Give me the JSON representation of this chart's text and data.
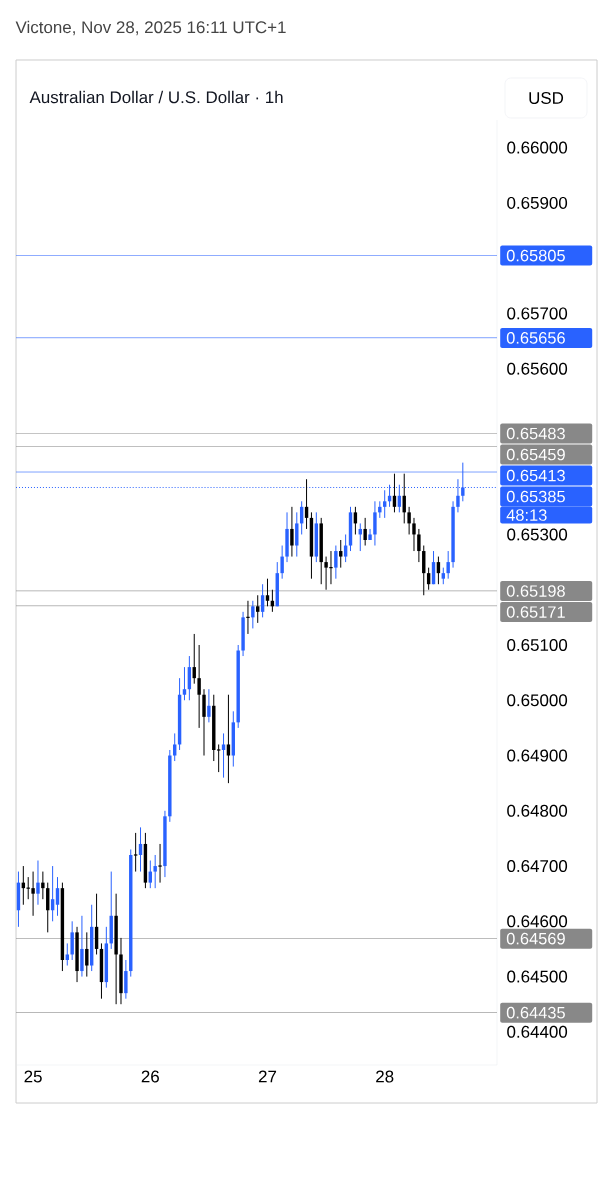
{
  "chart_data": {
    "type": "candlestick",
    "title": "Australian Dollar / U.S. Dollar · 1h",
    "subtitle": "Victone, Nov 28, 2025 16:11 UTC+1",
    "ylabel": "USD",
    "x": [
      "2025-11-24T21:00",
      "2025-11-24T22:00",
      "2025-11-24T23:00",
      "2025-11-25T00:00",
      "2025-11-25T01:00",
      "2025-11-25T02:00",
      "2025-11-25T03:00",
      "2025-11-25T04:00",
      "2025-11-25T05:00",
      "2025-11-25T06:00",
      "2025-11-25T07:00",
      "2025-11-25T08:00",
      "2025-11-25T09:00",
      "2025-11-25T10:00",
      "2025-11-25T11:00",
      "2025-11-25T12:00",
      "2025-11-25T13:00",
      "2025-11-25T14:00",
      "2025-11-25T15:00",
      "2025-11-25T16:00",
      "2025-11-25T17:00",
      "2025-11-25T18:00",
      "2025-11-25T19:00",
      "2025-11-25T20:00",
      "2025-11-25T21:00",
      "2025-11-25T22:00",
      "2025-11-25T23:00",
      "2025-11-26T00:00",
      "2025-11-26T01:00",
      "2025-11-26T02:00",
      "2025-11-26T03:00",
      "2025-11-26T04:00",
      "2025-11-26T05:00",
      "2025-11-26T06:00",
      "2025-11-26T07:00",
      "2025-11-26T08:00",
      "2025-11-26T09:00",
      "2025-11-26T10:00",
      "2025-11-26T11:00",
      "2025-11-26T12:00",
      "2025-11-26T13:00",
      "2025-11-26T14:00",
      "2025-11-26T15:00",
      "2025-11-26T16:00",
      "2025-11-26T17:00",
      "2025-11-26T18:00",
      "2025-11-26T19:00",
      "2025-11-26T20:00",
      "2025-11-26T21:00",
      "2025-11-26T22:00",
      "2025-11-26T23:00",
      "2025-11-27T00:00",
      "2025-11-27T01:00",
      "2025-11-27T02:00",
      "2025-11-27T03:00",
      "2025-11-27T04:00",
      "2025-11-27T05:00",
      "2025-11-27T06:00",
      "2025-11-27T07:00",
      "2025-11-27T08:00",
      "2025-11-27T09:00",
      "2025-11-27T10:00",
      "2025-11-27T11:00",
      "2025-11-27T12:00",
      "2025-11-27T13:00",
      "2025-11-27T14:00",
      "2025-11-27T15:00",
      "2025-11-27T16:00",
      "2025-11-27T17:00",
      "2025-11-27T18:00",
      "2025-11-27T19:00",
      "2025-11-27T20:00",
      "2025-11-27T21:00",
      "2025-11-27T22:00",
      "2025-11-27T23:00",
      "2025-11-28T00:00",
      "2025-11-28T01:00",
      "2025-11-28T02:00",
      "2025-11-28T03:00",
      "2025-11-28T04:00",
      "2025-11-28T05:00",
      "2025-11-28T06:00",
      "2025-11-28T07:00",
      "2025-11-28T08:00",
      "2025-11-28T09:00",
      "2025-11-28T10:00",
      "2025-11-28T11:00",
      "2025-11-28T12:00",
      "2025-11-28T13:00",
      "2025-11-28T14:00",
      "2025-11-28T15:00",
      "2025-11-28T16:00"
    ],
    "ohlc": [
      [
        0.6462,
        0.6469,
        0.6459,
        0.6467
      ],
      [
        0.6467,
        0.647,
        0.6463,
        0.6466
      ],
      [
        0.6466,
        0.6468,
        0.6464,
        0.6466
      ],
      [
        0.6466,
        0.6469,
        0.6461,
        0.6465
      ],
      [
        0.6465,
        0.6471,
        0.6463,
        0.6467
      ],
      [
        0.6467,
        0.6469,
        0.6464,
        0.6466
      ],
      [
        0.6466,
        0.6467,
        0.6458,
        0.6462
      ],
      [
        0.6462,
        0.647,
        0.646,
        0.6464
      ],
      [
        0.6463,
        0.6468,
        0.6461,
        0.6466
      ],
      [
        0.6466,
        0.6467,
        0.6451,
        0.6453
      ],
      [
        0.6453,
        0.6456,
        0.6452,
        0.6454
      ],
      [
        0.6454,
        0.646,
        0.6453,
        0.6458
      ],
      [
        0.6458,
        0.6459,
        0.6449,
        0.6451
      ],
      [
        0.6451,
        0.6461,
        0.645,
        0.6455
      ],
      [
        0.6455,
        0.6458,
        0.645,
        0.6452
      ],
      [
        0.6452,
        0.6463,
        0.6451,
        0.6459
      ],
      [
        0.6459,
        0.6465,
        0.6454,
        0.6455
      ],
      [
        0.6455,
        0.6456,
        0.6446,
        0.6449
      ],
      [
        0.6449,
        0.6459,
        0.6448,
        0.6456
      ],
      [
        0.6456,
        0.6469,
        0.6455,
        0.6461
      ],
      [
        0.6461,
        0.6465,
        0.6445,
        0.6454
      ],
      [
        0.6454,
        0.6457,
        0.6445,
        0.6447
      ],
      [
        0.6447,
        0.6453,
        0.6446,
        0.6451
      ],
      [
        0.6451,
        0.6473,
        0.645,
        0.6472
      ],
      [
        0.6472,
        0.6476,
        0.6469,
        0.6472
      ],
      [
        0.6472,
        0.6477,
        0.6469,
        0.6474
      ],
      [
        0.6474,
        0.6476,
        0.6466,
        0.6467
      ],
      [
        0.6467,
        0.6471,
        0.6466,
        0.6469
      ],
      [
        0.6469,
        0.6472,
        0.6466,
        0.647
      ],
      [
        0.647,
        0.6474,
        0.6467,
        0.647
      ],
      [
        0.647,
        0.648,
        0.6468,
        0.6479
      ],
      [
        0.6479,
        0.6491,
        0.6478,
        0.649
      ],
      [
        0.649,
        0.6494,
        0.6489,
        0.6492
      ],
      [
        0.6492,
        0.6504,
        0.6491,
        0.6501
      ],
      [
        0.6501,
        0.6506,
        0.65,
        0.6502
      ],
      [
        0.6502,
        0.6508,
        0.65,
        0.6506
      ],
      [
        0.6506,
        0.6512,
        0.6503,
        0.6504
      ],
      [
        0.6504,
        0.651,
        0.6495,
        0.6501
      ],
      [
        0.6501,
        0.6502,
        0.649,
        0.6497
      ],
      [
        0.6497,
        0.6502,
        0.6496,
        0.6499
      ],
      [
        0.6499,
        0.6501,
        0.6489,
        0.6491
      ],
      [
        0.6491,
        0.6492,
        0.6487,
        0.6491
      ],
      [
        0.6491,
        0.6494,
        0.6486,
        0.6492
      ],
      [
        0.6492,
        0.6501,
        0.6485,
        0.649
      ],
      [
        0.649,
        0.6498,
        0.6488,
        0.6496
      ],
      [
        0.6496,
        0.651,
        0.6495,
        0.6509
      ],
      [
        0.6509,
        0.6516,
        0.6508,
        0.6515
      ],
      [
        0.6515,
        0.6518,
        0.6512,
        0.6515
      ],
      [
        0.6515,
        0.6518,
        0.6513,
        0.6517
      ],
      [
        0.6517,
        0.6519,
        0.6514,
        0.6516
      ],
      [
        0.6516,
        0.6521,
        0.6515,
        0.6519
      ],
      [
        0.6519,
        0.6522,
        0.6517,
        0.6518
      ],
      [
        0.6518,
        0.652,
        0.6516,
        0.6517
      ],
      [
        0.6517,
        0.6525,
        0.6517,
        0.6523
      ],
      [
        0.6523,
        0.6528,
        0.6522,
        0.6526
      ],
      [
        0.6526,
        0.6534,
        0.6525,
        0.6531
      ],
      [
        0.6531,
        0.6535,
        0.6526,
        0.6528
      ],
      [
        0.6528,
        0.6534,
        0.6526,
        0.6532
      ],
      [
        0.6532,
        0.6536,
        0.653,
        0.6535
      ],
      [
        0.6535,
        0.654,
        0.6531,
        0.6533
      ],
      [
        0.6533,
        0.6534,
        0.6522,
        0.6526
      ],
      [
        0.6526,
        0.6534,
        0.6525,
        0.6532
      ],
      [
        0.6532,
        0.6533,
        0.6521,
        0.6525
      ],
      [
        0.6525,
        0.6526,
        0.652,
        0.6524
      ],
      [
        0.6524,
        0.6527,
        0.6521,
        0.6524
      ],
      [
        0.6524,
        0.6528,
        0.6522,
        0.6527
      ],
      [
        0.6527,
        0.6529,
        0.6524,
        0.6526
      ],
      [
        0.6526,
        0.653,
        0.6525,
        0.6528
      ],
      [
        0.6528,
        0.6535,
        0.6527,
        0.6534
      ],
      [
        0.6534,
        0.6535,
        0.653,
        0.6532
      ],
      [
        0.653,
        0.6532,
        0.6527,
        0.6531
      ],
      [
        0.6531,
        0.6533,
        0.6528,
        0.6529
      ],
      [
        0.6529,
        0.6531,
        0.6529,
        0.653
      ],
      [
        0.653,
        0.6536,
        0.6528,
        0.6534
      ],
      [
        0.6534,
        0.6536,
        0.6533,
        0.6535
      ],
      [
        0.6535,
        0.6538,
        0.6533,
        0.6536
      ],
      [
        0.6536,
        0.6539,
        0.6535,
        0.6537
      ],
      [
        0.6537,
        0.6541,
        0.6534,
        0.6535
      ],
      [
        0.6535,
        0.6539,
        0.6534,
        0.6537
      ],
      [
        0.6537,
        0.6541,
        0.6532,
        0.6534
      ],
      [
        0.6534,
        0.6535,
        0.653,
        0.6532
      ],
      [
        0.6532,
        0.6533,
        0.6527,
        0.653
      ],
      [
        0.653,
        0.6531,
        0.6525,
        0.6527
      ],
      [
        0.6527,
        0.6528,
        0.6519,
        0.6523
      ],
      [
        0.6523,
        0.6524,
        0.652,
        0.6521
      ],
      [
        0.6521,
        0.6527,
        0.6521,
        0.6525
      ],
      [
        0.6525,
        0.6526,
        0.6521,
        0.6523
      ],
      [
        0.6522,
        0.6524,
        0.6521,
        0.6523
      ],
      [
        0.6523,
        0.6527,
        0.6522,
        0.6525
      ],
      [
        0.6525,
        0.6536,
        0.6524,
        0.6535
      ],
      [
        0.6535,
        0.654,
        0.6534,
        0.6537
      ],
      [
        0.6537,
        0.6543,
        0.6536,
        0.65385
      ]
    ],
    "colors": [
      "#2962ff",
      "#000000",
      "#000000",
      "#000000",
      "#2962ff",
      "#000000",
      "#000000",
      "#2962ff",
      "#2962ff",
      "#000000",
      "#2962ff",
      "#2962ff",
      "#000000",
      "#2962ff",
      "#000000",
      "#2962ff",
      "#000000",
      "#000000",
      "#2962ff",
      "#2962ff",
      "#000000",
      "#000000",
      "#2962ff",
      "#2962ff",
      "#000000",
      "#2962ff",
      "#000000",
      "#2962ff",
      "#2962ff",
      "#000000",
      "#2962ff",
      "#2962ff",
      "#2962ff",
      "#2962ff",
      "#2962ff",
      "#2962ff",
      "#000000",
      "#000000",
      "#000000",
      "#2962ff",
      "#000000",
      "#000000",
      "#2962ff",
      "#000000",
      "#2962ff",
      "#2962ff",
      "#2962ff",
      "#000000",
      "#2962ff",
      "#000000",
      "#2962ff",
      "#000000",
      "#000000",
      "#2962ff",
      "#2962ff",
      "#2962ff",
      "#000000",
      "#2962ff",
      "#2962ff",
      "#000000",
      "#000000",
      "#2962ff",
      "#000000",
      "#000000",
      "#000000",
      "#2962ff",
      "#000000",
      "#2962ff",
      "#2962ff",
      "#000000",
      "#2962ff",
      "#000000",
      "#2962ff",
      "#2962ff",
      "#2962ff",
      "#2962ff",
      "#2962ff",
      "#000000",
      "#2962ff",
      "#000000",
      "#000000",
      "#000000",
      "#000000",
      "#000000",
      "#000000",
      "#2962ff",
      "#000000",
      "#2962ff",
      "#2962ff",
      "#2962ff",
      "#2962ff",
      "#2962ff"
    ],
    "xlim": [
      "2025-11-24T20:30",
      "2025-11-28T23:00"
    ],
    "xticks": [
      {
        "value": "2025-11-25",
        "label": "25"
      },
      {
        "value": "2025-11-26",
        "label": "26"
      },
      {
        "value": "2025-11-27",
        "label": "27"
      },
      {
        "value": "2025-11-28",
        "label": "28"
      }
    ],
    "ylim": [
      0.6434,
      0.6605
    ],
    "yticks": [
      {
        "value": 0.644,
        "label": "0.64400"
      },
      {
        "value": 0.645,
        "label": "0.64500"
      },
      {
        "value": 0.646,
        "label": "0.64600"
      },
      {
        "value": 0.647,
        "label": "0.64700"
      },
      {
        "value": 0.648,
        "label": "0.64800"
      },
      {
        "value": 0.649,
        "label": "0.64900"
      },
      {
        "value": 0.65,
        "label": "0.65000"
      },
      {
        "value": 0.651,
        "label": "0.65100"
      },
      {
        "value": 0.653,
        "label": "0.65300"
      },
      {
        "value": 0.656,
        "label": "0.65600"
      },
      {
        "value": 0.657,
        "label": "0.65700"
      },
      {
        "value": 0.659,
        "label": "0.65900"
      },
      {
        "value": 0.66,
        "label": "0.66000"
      }
    ],
    "ref_lines": [
      {
        "axis": "y",
        "value": 0.65805,
        "label": "0.65805",
        "color": "#2962ff",
        "line_style": "solid"
      },
      {
        "axis": "y",
        "value": 0.65656,
        "label": "0.65656",
        "color": "#2962ff",
        "line_style": "solid"
      },
      {
        "axis": "y",
        "value": 0.65483,
        "label": "0.65483",
        "color": "#888888",
        "line_style": "solid"
      },
      {
        "axis": "y",
        "value": 0.65459,
        "label": "0.65459",
        "color": "#888888",
        "line_style": "solid"
      },
      {
        "axis": "y",
        "value": 0.65413,
        "label": "0.65413",
        "color": "#2962ff",
        "line_style": "solid"
      },
      {
        "axis": "y",
        "value": 0.65385,
        "label": "0.65385",
        "color": "#2962ff",
        "line_style": "dotted"
      },
      {
        "axis": "y",
        "value": 0.65198,
        "label": "0.65198",
        "color": "#888888",
        "line_style": "solid"
      },
      {
        "axis": "y",
        "value": 0.65171,
        "label": "0.65171",
        "color": "#888888",
        "line_style": "solid"
      },
      {
        "axis": "y",
        "value": 0.64569,
        "label": "0.64569",
        "color": "#888888",
        "line_style": "solid"
      },
      {
        "axis": "y",
        "value": 0.64435,
        "label": "0.64435",
        "color": "#888888",
        "line_style": "solid"
      }
    ],
    "annotations": [
      "48:13"
    ]
  }
}
